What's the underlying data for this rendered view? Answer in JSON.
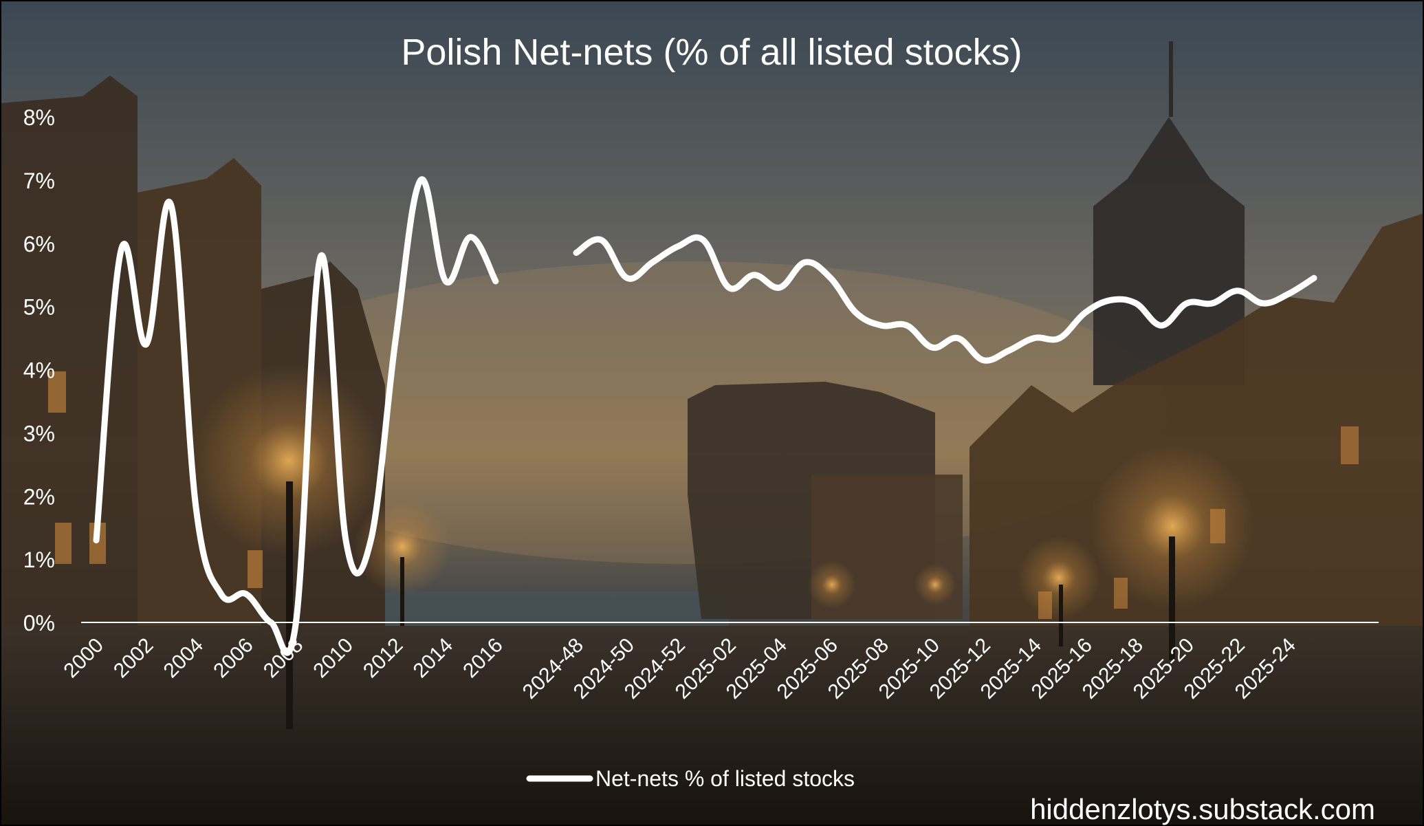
{
  "colors": {
    "line": "#ffffff",
    "sky_top": "#3b4956",
    "sky_mid": "#7a7062",
    "glow": "#c98a3e",
    "ground": "#2b2219"
  },
  "chart_data": {
    "type": "line",
    "title": "Polish Net-nets (% of all listed stocks)",
    "xlabel": "",
    "ylabel": "",
    "ylim": [
      0,
      8
    ],
    "y_ticks": [
      0,
      1,
      2,
      3,
      4,
      5,
      6,
      7,
      8
    ],
    "y_tick_labels": [
      "0%",
      "1%",
      "2%",
      "3%",
      "4%",
      "5%",
      "6%",
      "7%",
      "8%"
    ],
    "grid": false,
    "legend_position": "bottom-center",
    "watermark": "hiddenzlotys.substack.com",
    "annual": {
      "x": [
        "2000",
        "2001",
        "2002",
        "2003",
        "2004",
        "2005",
        "2006",
        "2007",
        "2008",
        "2009",
        "2010",
        "2011",
        "2012",
        "2013",
        "2014",
        "2015",
        "2016"
      ],
      "tick_labels": [
        "2000",
        "2002",
        "2004",
        "2006",
        "2008",
        "2010",
        "2012",
        "2014",
        "2016"
      ],
      "values": [
        1.3,
        5.9,
        4.4,
        6.6,
        1.8,
        0.45,
        0.45,
        0.0,
        0.0,
        5.8,
        1.3,
        1.3,
        4.5,
        7.0,
        5.4,
        6.1,
        5.4
      ]
    },
    "weekly": {
      "x": [
        "2024-48",
        "2024-49",
        "2024-50",
        "2024-51",
        "2024-52",
        "2025-01",
        "2025-02",
        "2025-03",
        "2025-04",
        "2025-05",
        "2025-06",
        "2025-07",
        "2025-08",
        "2025-09",
        "2025-10",
        "2025-11",
        "2025-12",
        "2025-13",
        "2025-14",
        "2025-15",
        "2025-16",
        "2025-17",
        "2025-18",
        "2025-19",
        "2025-20",
        "2025-21",
        "2025-22",
        "2025-23",
        "2025-24",
        "2025-25"
      ],
      "tick_labels": [
        "2024-48",
        "2024-50",
        "2024-52",
        "2025-02",
        "2025-04",
        "2025-06",
        "2025-08",
        "2025-10",
        "2025-12",
        "2025-14",
        "2025-16",
        "2025-18",
        "2025-20",
        "2025-22",
        "2025-24"
      ],
      "values": [
        5.85,
        6.05,
        5.45,
        5.7,
        5.95,
        6.05,
        5.3,
        5.5,
        5.3,
        5.7,
        5.45,
        4.9,
        4.7,
        4.7,
        4.35,
        4.5,
        4.15,
        4.3,
        4.5,
        4.5,
        4.9,
        5.1,
        5.05,
        4.7,
        5.05,
        5.05,
        5.25,
        5.05,
        5.2,
        5.45
      ]
    },
    "series": [
      {
        "name": "Net-nets % of listed stocks"
      }
    ]
  }
}
